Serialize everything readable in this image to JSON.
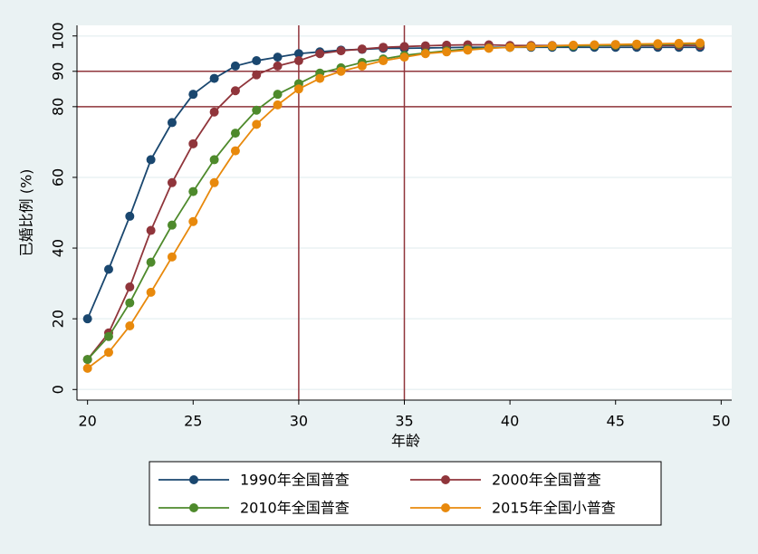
{
  "chart_data": {
    "type": "line",
    "x_label": "年龄",
    "y_label": "已婚比例 (%)",
    "x": [
      20,
      21,
      22,
      23,
      24,
      25,
      26,
      27,
      28,
      29,
      30,
      31,
      32,
      33,
      34,
      35,
      36,
      37,
      38,
      39,
      40,
      41,
      42,
      43,
      44,
      45,
      46,
      47,
      48,
      49
    ],
    "series": [
      {
        "name": "1990年全国普查",
        "color": "#1a476f",
        "values": [
          20,
          34,
          49,
          65,
          75.5,
          83.5,
          88,
          91.5,
          93,
          94,
          95,
          95.5,
          96,
          96.2,
          96.5,
          96.5,
          96.6,
          96.7,
          96.8,
          96.8,
          96.8,
          96.8,
          96.8,
          96.8,
          96.8,
          96.8,
          96.8,
          96.8,
          96.8,
          96.8
        ]
      },
      {
        "name": "2000年全国普查",
        "color": "#90353b",
        "values": [
          8.5,
          16,
          29,
          45,
          58.5,
          69.5,
          78.5,
          84.5,
          89,
          91.5,
          93,
          95,
          95.8,
          96.3,
          96.8,
          97,
          97.2,
          97.4,
          97.5,
          97.5,
          97.3,
          97.3,
          97.3,
          97.3,
          97.3,
          97.3,
          97.3,
          97.3,
          97.3,
          97.3
        ]
      },
      {
        "name": "2010年全国普查",
        "color": "#4e8a2c",
        "values": [
          8.5,
          15,
          24.5,
          36,
          46.5,
          56,
          65,
          72.5,
          79,
          83.5,
          86.5,
          89.5,
          91,
          92.5,
          93.5,
          94.5,
          95.2,
          95.8,
          96.3,
          96.6,
          96.8,
          97,
          97.1,
          97.2,
          97.3,
          97.4,
          97.5,
          97.6,
          97.7,
          97.8
        ]
      },
      {
        "name": "2015年全国小普查",
        "color": "#e8890c",
        "values": [
          6,
          10.5,
          18,
          27.5,
          37.5,
          47.5,
          58.5,
          67.5,
          75,
          80.5,
          85,
          88,
          90,
          91.5,
          93,
          94,
          95,
          95.5,
          96,
          96.5,
          96.8,
          97,
          97.2,
          97.4,
          97.5,
          97.6,
          97.7,
          97.8,
          97.9,
          98
        ]
      }
    ],
    "xlim": [
      19.5,
      50.5
    ],
    "xticks": [
      20,
      25,
      30,
      35,
      40,
      45,
      50
    ],
    "ylim": [
      -3,
      103
    ],
    "yticks": [
      0,
      20,
      40,
      60,
      80,
      90,
      100
    ],
    "hlines": [
      80,
      90
    ],
    "vlines": [
      30,
      35
    ],
    "ref_color": "#90353b",
    "grid": true,
    "legend": "bottom"
  }
}
